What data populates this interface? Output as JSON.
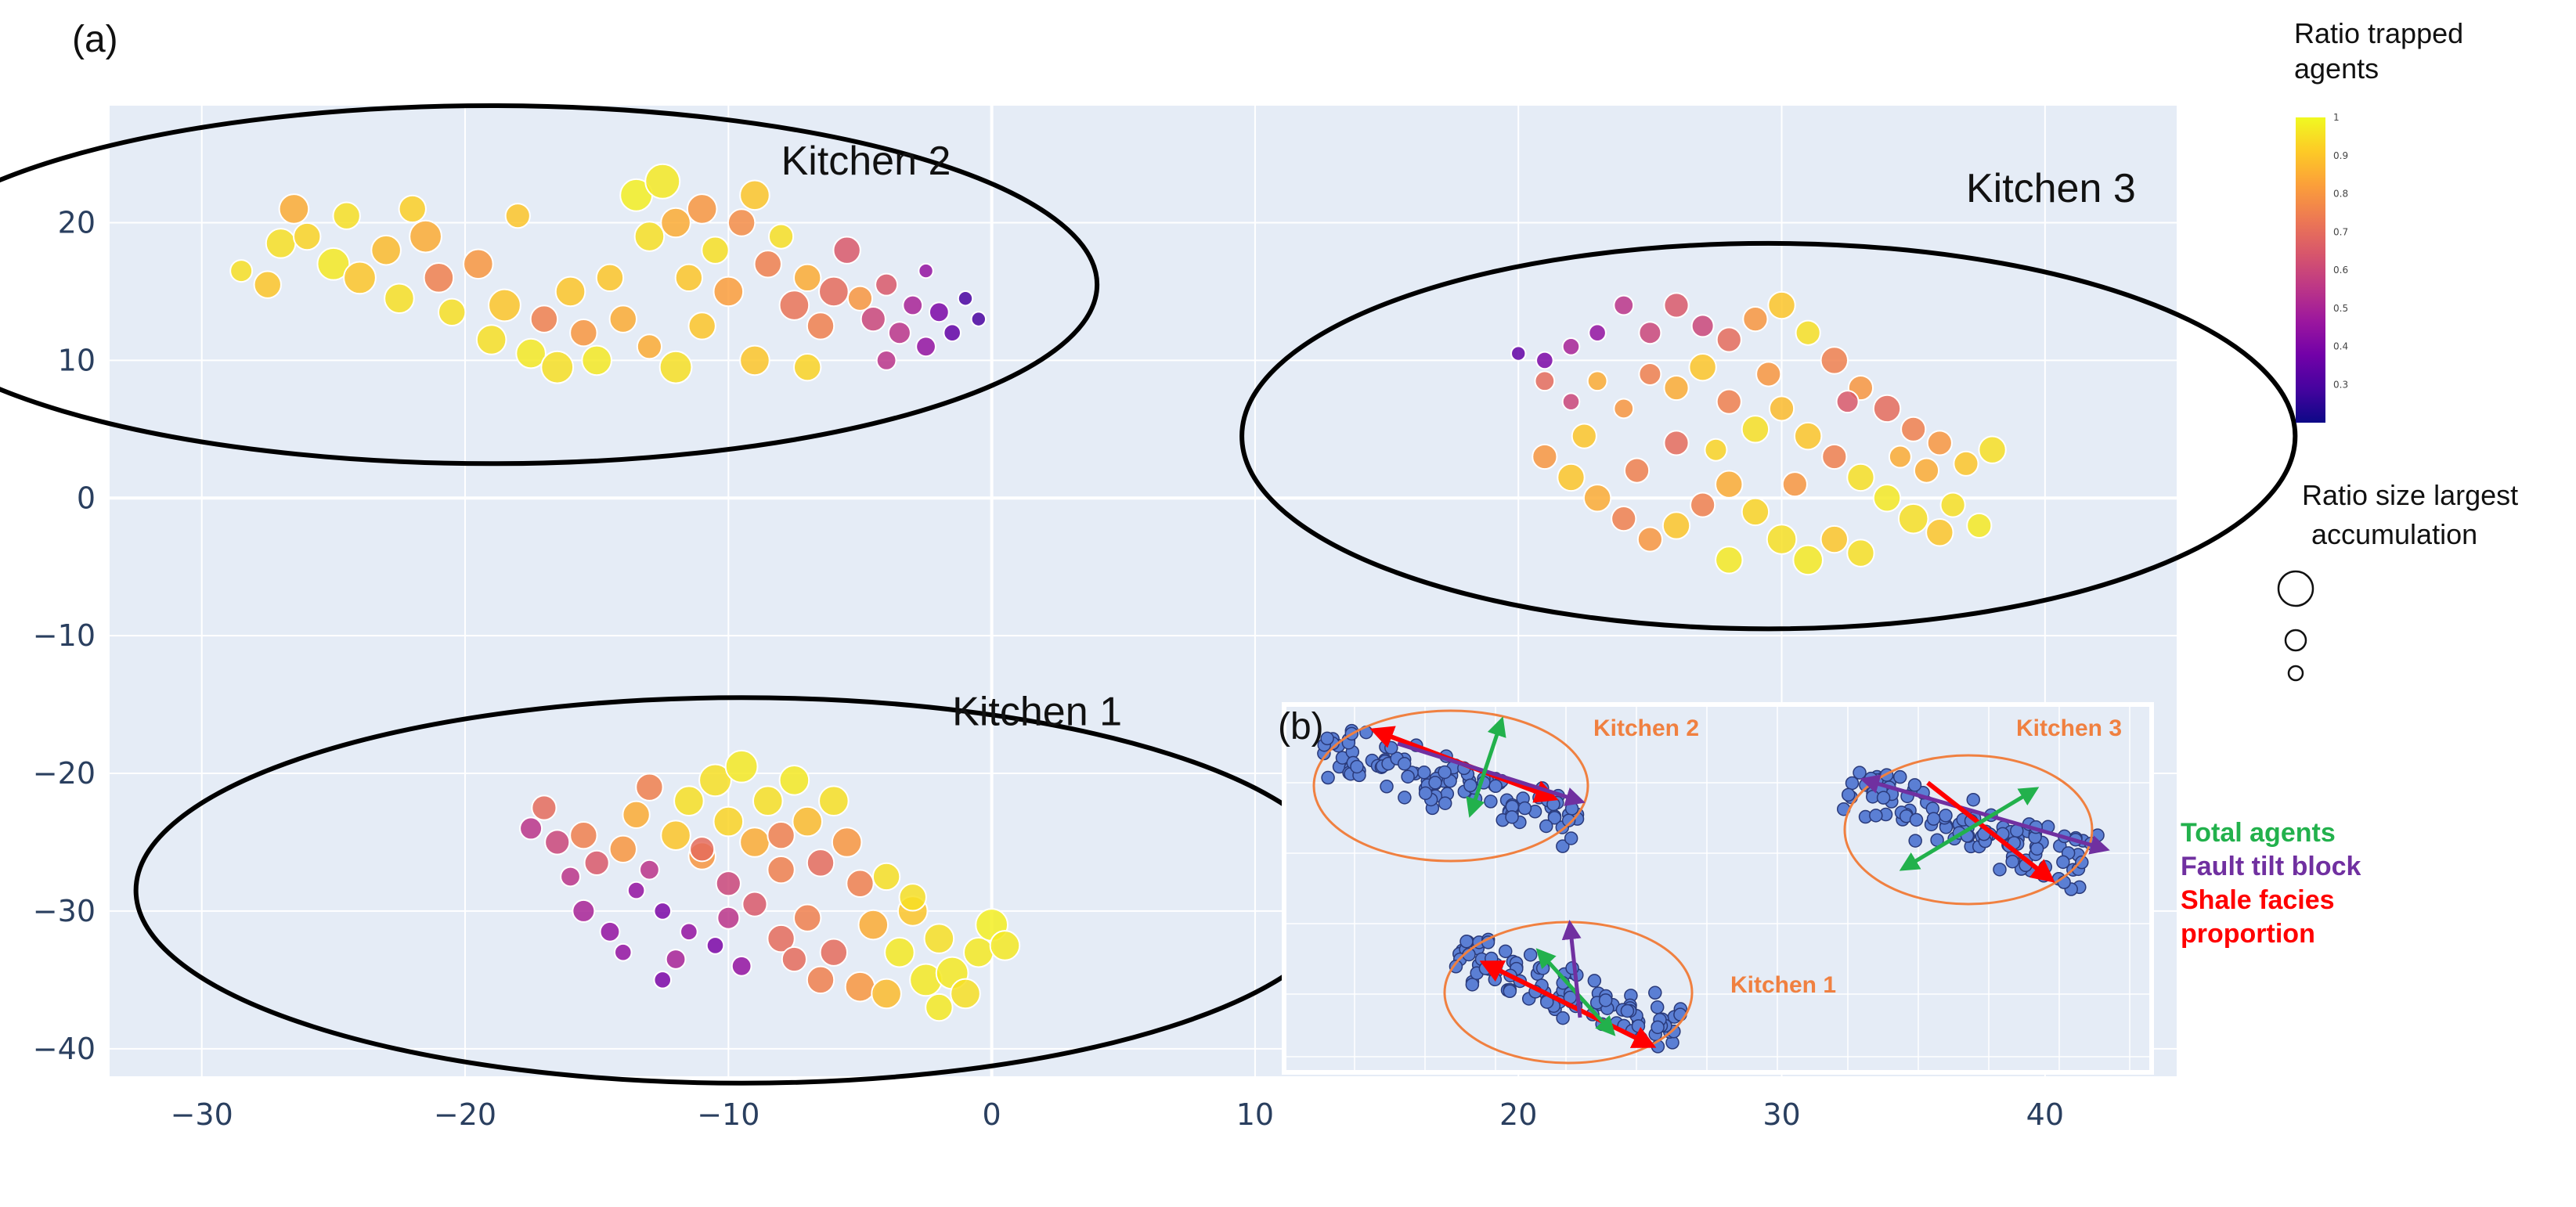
{
  "panel_a_label": "(a)",
  "panel_b_label": "(b)",
  "colorbar": {
    "title_line1": "Ratio trapped",
    "title_line2": "agents",
    "ticks": [
      "1",
      "0.9",
      "0.8",
      "0.7",
      "0.6",
      "0.5",
      "0.4",
      "0.3"
    ],
    "colors": [
      "#0d0887",
      "#46039f",
      "#7201a8",
      "#9c179e",
      "#bd3786",
      "#d8576b",
      "#ed7953",
      "#fb9f3a",
      "#fdca26",
      "#f0f921"
    ]
  },
  "size_legend": {
    "title_line1": "Ratio size largest",
    "title_line2": "accumulation"
  },
  "inset_key": {
    "total_agents": "Total agents",
    "fault_tilt_block": "Fault tilt block",
    "shale_line1": "Shale facies",
    "shale_line2": "proportion",
    "colors": {
      "total": "#22b14c",
      "fault": "#7030a0",
      "shale": "#ff0000",
      "kitchen_label": "#f08040",
      "ellipse": "#f08040",
      "point": "#5b7fd4"
    }
  },
  "inset_kitchens": [
    "Kitchen 2",
    "Kitchen 3",
    "Kitchen 1"
  ],
  "chart_data": {
    "type": "scatter",
    "title": "",
    "xlabel": "",
    "ylabel": "",
    "xlim": [
      -33.5,
      45
    ],
    "ylim": [
      -42,
      28.5
    ],
    "xticks": [
      -30,
      -20,
      -10,
      0,
      10,
      20,
      30,
      40
    ],
    "yticks": [
      20,
      10,
      0,
      -10,
      -20,
      -30,
      -40
    ],
    "grid": true,
    "color_variable": "Ratio trapped agents",
    "size_variable": "Ratio size largest accumulation",
    "clusters": [
      {
        "name": "Kitchen 2",
        "label_anchor": [
          -8,
          23.5
        ],
        "ellipse": {
          "cx": -19,
          "cy": 15.5,
          "rx": 23,
          "ry": 13
        },
        "points": [
          [
            -28.5,
            16.5,
            0.95,
            0.5
          ],
          [
            -27.5,
            15.5,
            0.9,
            0.7
          ],
          [
            -27,
            18.5,
            0.95,
            0.8
          ],
          [
            -26.5,
            21,
            0.85,
            0.8
          ],
          [
            -26,
            19,
            0.93,
            0.7
          ],
          [
            -25,
            17,
            0.97,
            0.9
          ],
          [
            -24.5,
            20.5,
            0.95,
            0.7
          ],
          [
            -24,
            16,
            0.9,
            0.9
          ],
          [
            -23,
            18,
            0.88,
            0.8
          ],
          [
            -22.5,
            14.5,
            0.95,
            0.8
          ],
          [
            -21.5,
            19,
            0.85,
            0.9
          ],
          [
            -21,
            16,
            0.75,
            0.8
          ],
          [
            -20.5,
            13.5,
            0.95,
            0.7
          ],
          [
            -19.5,
            17,
            0.8,
            0.8
          ],
          [
            -19,
            11.5,
            0.95,
            0.8
          ],
          [
            -18.5,
            14,
            0.9,
            0.9
          ],
          [
            -17.5,
            10.5,
            0.97,
            0.8
          ],
          [
            -17,
            13,
            0.75,
            0.7
          ],
          [
            -16.5,
            9.5,
            0.95,
            0.9
          ],
          [
            -16,
            15,
            0.9,
            0.8
          ],
          [
            -15.5,
            12,
            0.8,
            0.7
          ],
          [
            -15,
            10,
            0.97,
            0.8
          ],
          [
            -14.5,
            16,
            0.9,
            0.7
          ],
          [
            -14,
            13,
            0.85,
            0.7
          ],
          [
            -13.5,
            22,
            0.98,
            0.9
          ],
          [
            -13,
            19,
            0.95,
            0.8
          ],
          [
            -12.5,
            23,
            0.97,
            1.0
          ],
          [
            -12,
            20,
            0.85,
            0.8
          ],
          [
            -11.5,
            16,
            0.9,
            0.7
          ],
          [
            -11,
            21,
            0.8,
            0.8
          ],
          [
            -10.5,
            18,
            0.95,
            0.7
          ],
          [
            -10,
            15,
            0.82,
            0.8
          ],
          [
            -9.5,
            20,
            0.78,
            0.7
          ],
          [
            -9,
            22,
            0.9,
            0.8
          ],
          [
            -8.5,
            17,
            0.75,
            0.7
          ],
          [
            -8,
            19,
            0.95,
            0.6
          ],
          [
            -7.5,
            14,
            0.72,
            0.8
          ],
          [
            -7,
            16,
            0.85,
            0.7
          ],
          [
            -6.5,
            12.5,
            0.75,
            0.7
          ],
          [
            -6,
            15,
            0.7,
            0.8
          ],
          [
            -5.5,
            18,
            0.65,
            0.7
          ],
          [
            -5,
            14.5,
            0.8,
            0.6
          ],
          [
            -4.5,
            13,
            0.6,
            0.6
          ],
          [
            -4,
            15.5,
            0.65,
            0.5
          ],
          [
            -3.5,
            12,
            0.55,
            0.5
          ],
          [
            -3,
            14,
            0.5,
            0.4
          ],
          [
            -2.5,
            11,
            0.45,
            0.4
          ],
          [
            -2,
            13.5,
            0.4,
            0.4
          ],
          [
            -1.5,
            12,
            0.35,
            0.3
          ],
          [
            -1,
            14.5,
            0.3,
            0.2
          ],
          [
            -0.5,
            13,
            0.3,
            0.2
          ],
          [
            -4,
            10,
            0.55,
            0.4
          ],
          [
            -2.5,
            16.5,
            0.45,
            0.2
          ],
          [
            -12,
            9.5,
            0.95,
            0.9
          ],
          [
            -9,
            10,
            0.9,
            0.8
          ],
          [
            -22,
            21,
            0.92,
            0.7
          ],
          [
            -18,
            20.5,
            0.9,
            0.6
          ],
          [
            -13,
            11,
            0.85,
            0.6
          ],
          [
            -7,
            9.5,
            0.93,
            0.7
          ],
          [
            -11,
            12.5,
            0.9,
            0.7
          ]
        ]
      },
      {
        "name": "Kitchen 3",
        "label_anchor": [
          37,
          21.5
        ],
        "ellipse": {
          "cx": 29.5,
          "cy": 4.5,
          "rx": 20,
          "ry": 14
        },
        "points": [
          [
            20,
            10.5,
            0.35,
            0.2
          ],
          [
            21,
            10,
            0.4,
            0.3
          ],
          [
            22,
            11,
            0.5,
            0.3
          ],
          [
            23,
            12,
            0.45,
            0.3
          ],
          [
            24,
            14,
            0.55,
            0.4
          ],
          [
            25,
            12,
            0.6,
            0.5
          ],
          [
            26,
            14,
            0.65,
            0.6
          ],
          [
            27,
            12.5,
            0.6,
            0.5
          ],
          [
            28,
            11.5,
            0.7,
            0.6
          ],
          [
            29,
            13,
            0.8,
            0.6
          ],
          [
            30,
            14,
            0.9,
            0.7
          ],
          [
            31,
            12,
            0.95,
            0.6
          ],
          [
            32,
            10,
            0.75,
            0.7
          ],
          [
            33,
            8,
            0.8,
            0.6
          ],
          [
            34,
            6.5,
            0.7,
            0.7
          ],
          [
            35,
            5,
            0.75,
            0.6
          ],
          [
            36,
            4,
            0.8,
            0.6
          ],
          [
            37,
            2.5,
            0.9,
            0.6
          ],
          [
            38,
            3.5,
            0.95,
            0.7
          ],
          [
            21,
            8.5,
            0.7,
            0.4
          ],
          [
            22,
            7,
            0.6,
            0.3
          ],
          [
            23,
            8.5,
            0.85,
            0.4
          ],
          [
            24,
            6.5,
            0.8,
            0.4
          ],
          [
            25,
            9,
            0.75,
            0.5
          ],
          [
            26,
            8,
            0.85,
            0.6
          ],
          [
            27,
            9.5,
            0.9,
            0.7
          ],
          [
            28,
            7,
            0.75,
            0.6
          ],
          [
            29,
            5,
            0.95,
            0.7
          ],
          [
            30,
            6.5,
            0.88,
            0.6
          ],
          [
            31,
            4.5,
            0.9,
            0.7
          ],
          [
            32,
            3,
            0.75,
            0.6
          ],
          [
            33,
            1.5,
            0.95,
            0.7
          ],
          [
            34,
            0,
            0.97,
            0.7
          ],
          [
            35,
            -1.5,
            0.95,
            0.8
          ],
          [
            36,
            -2.5,
            0.9,
            0.7
          ],
          [
            21,
            3,
            0.8,
            0.6
          ],
          [
            22,
            1.5,
            0.9,
            0.7
          ],
          [
            23,
            0,
            0.85,
            0.7
          ],
          [
            24,
            -1.5,
            0.75,
            0.6
          ],
          [
            25,
            -3,
            0.8,
            0.6
          ],
          [
            26,
            -2,
            0.9,
            0.7
          ],
          [
            27,
            -0.5,
            0.75,
            0.6
          ],
          [
            28,
            1,
            0.85,
            0.7
          ],
          [
            29,
            -1,
            0.93,
            0.7
          ],
          [
            30,
            -3,
            0.95,
            0.8
          ],
          [
            31,
            -4.5,
            0.97,
            0.8
          ],
          [
            32,
            -3,
            0.9,
            0.7
          ],
          [
            33,
            -4,
            0.95,
            0.7
          ],
          [
            28,
            -4.5,
            0.97,
            0.7
          ],
          [
            26,
            4,
            0.7,
            0.6
          ],
          [
            29.5,
            9,
            0.8,
            0.6
          ],
          [
            24.5,
            2,
            0.75,
            0.6
          ],
          [
            35.5,
            2,
            0.85,
            0.6
          ],
          [
            32.5,
            7,
            0.65,
            0.5
          ],
          [
            22.5,
            4.5,
            0.9,
            0.6
          ],
          [
            36.5,
            -0.5,
            0.95,
            0.6
          ],
          [
            30.5,
            1,
            0.8,
            0.6
          ],
          [
            27.5,
            3.5,
            0.93,
            0.5
          ],
          [
            37.5,
            -2,
            0.97,
            0.6
          ],
          [
            34.5,
            3,
            0.85,
            0.5
          ]
        ]
      },
      {
        "name": "Kitchen 1",
        "label_anchor": [
          -1.5,
          -16.5
        ],
        "ellipse": {
          "cx": -9.5,
          "cy": -28.5,
          "rx": 23,
          "ry": 14
        },
        "points": [
          [
            -17.5,
            -24,
            0.55,
            0.5
          ],
          [
            -17,
            -22.5,
            0.7,
            0.6
          ],
          [
            -16.5,
            -25,
            0.6,
            0.6
          ],
          [
            -15.5,
            -24.5,
            0.75,
            0.7
          ],
          [
            -15,
            -26.5,
            0.65,
            0.6
          ],
          [
            -14,
            -25.5,
            0.8,
            0.7
          ],
          [
            -13.5,
            -23,
            0.85,
            0.7
          ],
          [
            -13,
            -21,
            0.75,
            0.7
          ],
          [
            -12,
            -24.5,
            0.9,
            0.8
          ],
          [
            -11.5,
            -22,
            0.95,
            0.8
          ],
          [
            -11,
            -26,
            0.8,
            0.7
          ],
          [
            -10.5,
            -20.5,
            0.95,
            0.9
          ],
          [
            -10,
            -23.5,
            0.93,
            0.8
          ],
          [
            -9.5,
            -19.5,
            0.97,
            0.9
          ],
          [
            -9,
            -25,
            0.85,
            0.8
          ],
          [
            -8.5,
            -22,
            0.95,
            0.8
          ],
          [
            -8,
            -24.5,
            0.75,
            0.7
          ],
          [
            -7.5,
            -20.5,
            0.97,
            0.8
          ],
          [
            -7,
            -23.5,
            0.88,
            0.8
          ],
          [
            -6.5,
            -26.5,
            0.7,
            0.7
          ],
          [
            -6,
            -22,
            0.95,
            0.8
          ],
          [
            -5.5,
            -25,
            0.8,
            0.8
          ],
          [
            -5,
            -28,
            0.75,
            0.7
          ],
          [
            -4.5,
            -31,
            0.85,
            0.8
          ],
          [
            -4,
            -27.5,
            0.95,
            0.7
          ],
          [
            -3.5,
            -33,
            0.97,
            0.8
          ],
          [
            -3,
            -30,
            0.9,
            0.8
          ],
          [
            -2.5,
            -35,
            0.97,
            0.9
          ],
          [
            -2,
            -32,
            0.95,
            0.8
          ],
          [
            -1.5,
            -34.5,
            0.97,
            0.9
          ],
          [
            -1,
            -36,
            0.95,
            0.8
          ],
          [
            -0.5,
            -33,
            0.97,
            0.8
          ],
          [
            0,
            -31,
            0.98,
            0.9
          ],
          [
            0.5,
            -32.5,
            0.97,
            0.8
          ],
          [
            -15.5,
            -30,
            0.5,
            0.5
          ],
          [
            -14.5,
            -31.5,
            0.45,
            0.4
          ],
          [
            -13.5,
            -28.5,
            0.45,
            0.3
          ],
          [
            -12.5,
            -30,
            0.4,
            0.3
          ],
          [
            -11.5,
            -31.5,
            0.45,
            0.3
          ],
          [
            -10.5,
            -32.5,
            0.4,
            0.3
          ],
          [
            -9.5,
            -34,
            0.45,
            0.4
          ],
          [
            -12,
            -33.5,
            0.5,
            0.4
          ],
          [
            -9,
            -29.5,
            0.65,
            0.6
          ],
          [
            -8,
            -32,
            0.7,
            0.7
          ],
          [
            -7,
            -30.5,
            0.75,
            0.7
          ],
          [
            -6,
            -33,
            0.7,
            0.7
          ],
          [
            -5,
            -35.5,
            0.8,
            0.8
          ],
          [
            -6.5,
            -35,
            0.75,
            0.7
          ],
          [
            -4,
            -36,
            0.88,
            0.8
          ],
          [
            -13,
            -27,
            0.55,
            0.4
          ],
          [
            -10,
            -28,
            0.6,
            0.6
          ],
          [
            -11,
            -25.5,
            0.7,
            0.6
          ],
          [
            -8,
            -27,
            0.75,
            0.7
          ],
          [
            -3,
            -29,
            0.95,
            0.7
          ],
          [
            -16,
            -27.5,
            0.55,
            0.4
          ],
          [
            -14,
            -33,
            0.45,
            0.3
          ],
          [
            -7.5,
            -33.5,
            0.7,
            0.6
          ],
          [
            -2,
            -37,
            0.97,
            0.7
          ],
          [
            -12.5,
            -35,
            0.4,
            0.3
          ],
          [
            -10,
            -30.5,
            0.55,
            0.5
          ]
        ]
      }
    ]
  }
}
